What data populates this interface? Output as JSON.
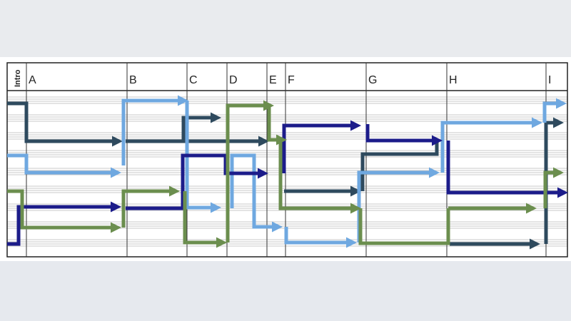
{
  "header": {
    "labels": [
      "Intro",
      "A",
      "B",
      "C",
      "D",
      "E",
      "F",
      "G",
      "H",
      "I"
    ]
  }
}
